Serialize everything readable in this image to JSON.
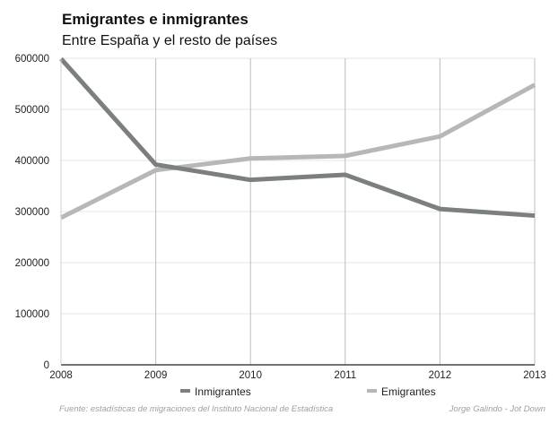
{
  "chart_data": {
    "type": "line",
    "title": "Emigrantes e inmigrantes",
    "subtitle": "Entre España y el resto de países",
    "x": [
      2008,
      2009,
      2010,
      2011,
      2012,
      2013
    ],
    "x_tick_labels": [
      "2008",
      "2009",
      "2010",
      "2011",
      "2012",
      "2013"
    ],
    "y_tick_labels": [
      "0",
      "100000",
      "200000",
      "300000",
      "400000",
      "500000",
      "600000"
    ],
    "ylim": [
      0,
      600000
    ],
    "grid": true,
    "legend_position": "bottom",
    "series": [
      {
        "name": "Inmigrantes",
        "color": "#7b807d",
        "values": [
          599000,
          392000,
          362000,
          372000,
          305000,
          292000
        ]
      },
      {
        "name": "Emigrantes",
        "color": "#b7b7b7",
        "values": [
          288000,
          381000,
          404000,
          409000,
          447000,
          548000
        ]
      }
    ],
    "source": "Fuente: estadísticas de migraciones del Instituto Nacional de Estadística",
    "credit": "Jorge Galindo - Jot Down"
  }
}
